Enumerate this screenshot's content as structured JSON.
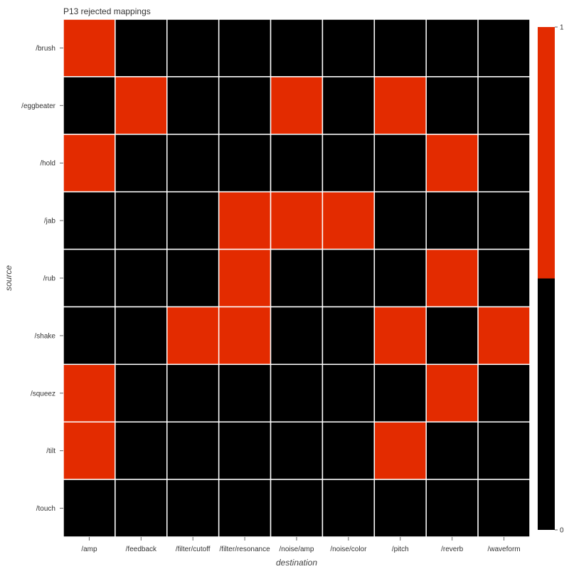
{
  "chart_data": {
    "type": "heatmap",
    "title": "P13 rejected mappings",
    "xlabel": "destination",
    "ylabel": "source",
    "x_categories": [
      "/amp",
      "/feedback",
      "/filter/cutoff",
      "/filter/resonance",
      "/noise/amp",
      "/noise/color",
      "/pitch",
      "/reverb",
      "/waveform"
    ],
    "y_categories": [
      "/brush",
      "/eggbeater",
      "/hold",
      "/jab",
      "/rub",
      "/shake",
      "/squeez",
      "/tilt",
      "/touch"
    ],
    "values": [
      [
        1,
        0,
        0,
        0,
        0,
        0,
        0,
        0,
        0
      ],
      [
        0,
        1,
        0,
        0,
        1,
        0,
        1,
        0,
        0
      ],
      [
        1,
        0,
        0,
        0,
        0,
        0,
        0,
        1,
        0
      ],
      [
        0,
        0,
        0,
        1,
        1,
        1,
        0,
        0,
        0
      ],
      [
        0,
        0,
        0,
        1,
        0,
        0,
        0,
        1,
        0
      ],
      [
        0,
        0,
        1,
        1,
        0,
        0,
        1,
        0,
        1
      ],
      [
        1,
        0,
        0,
        0,
        0,
        0,
        0,
        1,
        0
      ],
      [
        1,
        0,
        0,
        0,
        0,
        0,
        1,
        0,
        0
      ],
      [
        0,
        0,
        0,
        0,
        0,
        0,
        0,
        0,
        0
      ]
    ],
    "colorbar": {
      "min": 0,
      "max": 1,
      "tick_labels": [
        "1",
        "0"
      ],
      "threshold": 0.5
    },
    "colors": {
      "high": "#e32b00",
      "low": "#000000",
      "grid": "#ffffff"
    }
  }
}
